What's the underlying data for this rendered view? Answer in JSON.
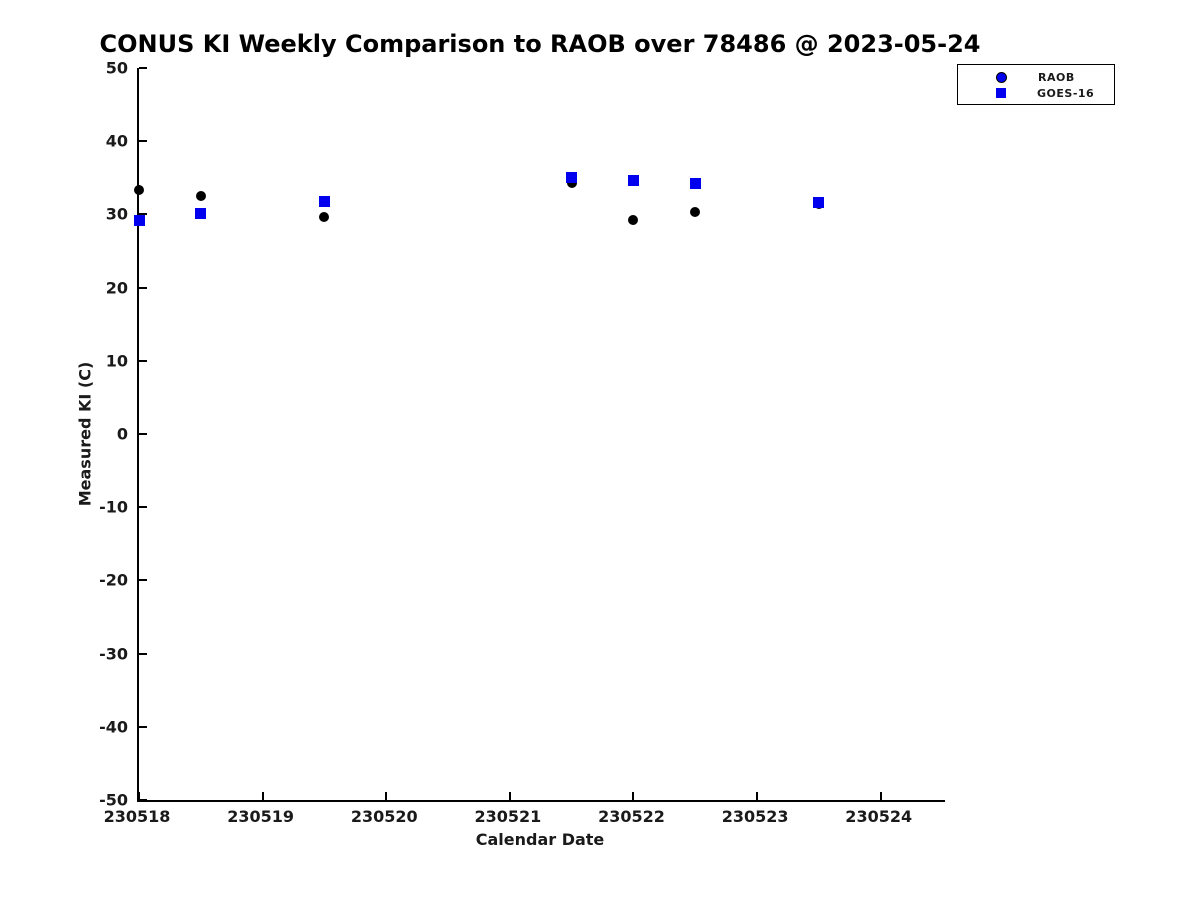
{
  "chart_data": {
    "type": "scatter",
    "title": "CONUS KI Weekly Comparison to RAOB over 78486 @ 2023-05-24",
    "xlabel": "Calendar Date",
    "ylabel": "Measured KI (C)",
    "xlim": [
      230518,
      230524.52
    ],
    "ylim": [
      -50,
      50
    ],
    "x_ticks": [
      230518,
      230519,
      230520,
      230521,
      230522,
      230523,
      230524
    ],
    "y_ticks": [
      50,
      40,
      30,
      20,
      10,
      0,
      -10,
      -20,
      -30,
      -40,
      -50
    ],
    "grid": false,
    "axis_color": "#000000",
    "legend": {
      "position": "top-right",
      "entries": [
        {
          "label": "RAOB",
          "marker": "circle",
          "color": "#0000ee"
        },
        {
          "label": "GOES-16",
          "marker": "square",
          "color": "#0000ee"
        }
      ]
    },
    "series": [
      {
        "name": "RAOB",
        "marker": "circle",
        "point_color": "#000000",
        "marker_size_px": 10,
        "x": [
          230518.0,
          230518.5,
          230519.5,
          230521.5,
          230522.0,
          230522.5,
          230523.5
        ],
        "y": [
          33.4,
          32.5,
          29.6,
          34.3,
          29.2,
          30.3,
          31.4
        ]
      },
      {
        "name": "GOES-16",
        "marker": "square",
        "point_color": "#0000ee",
        "marker_size_px": 11,
        "x": [
          230518.0,
          230518.5,
          230519.5,
          230521.5,
          230522.0,
          230522.5,
          230523.5
        ],
        "y": [
          29.2,
          30.1,
          31.8,
          35.1,
          34.6,
          34.2,
          31.6
        ]
      }
    ]
  }
}
